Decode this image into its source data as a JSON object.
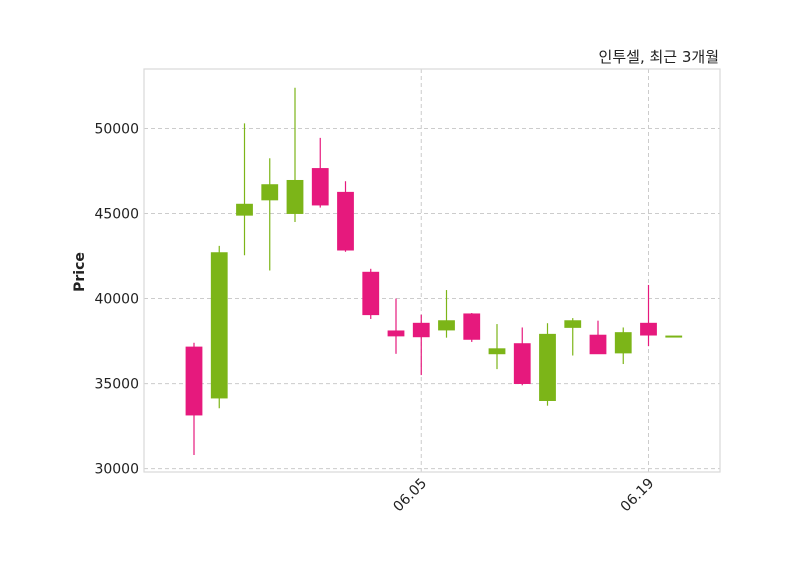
{
  "chart_data": {
    "type": "candlestick",
    "title": "인투셀, 최근 3개월",
    "ylabel": "Price",
    "ylim": [
      29800,
      53500
    ],
    "yticks": [
      30000,
      35000,
      40000,
      45000,
      50000
    ],
    "ytick_labels": [
      "30000",
      "35000",
      "40000",
      "45000",
      "50000"
    ],
    "xticks": [
      {
        "index": 9,
        "label": "06.05"
      },
      {
        "index": 18,
        "label": "06.19"
      }
    ],
    "grid": true,
    "colors": {
      "up": "#7cb518",
      "down": "#e6197d",
      "grid": "#cccccc",
      "frame": "#d9d9d9"
    },
    "candles": [
      {
        "open": 37150,
        "high": 37400,
        "low": 30800,
        "close": 33150
      },
      {
        "open": 34150,
        "high": 43100,
        "low": 33550,
        "close": 42700
      },
      {
        "open": 44900,
        "high": 50300,
        "low": 42550,
        "close": 45550
      },
      {
        "open": 45800,
        "high": 48250,
        "low": 41650,
        "close": 46700
      },
      {
        "open": 45000,
        "high": 52400,
        "low": 44500,
        "close": 46950
      },
      {
        "open": 47650,
        "high": 49450,
        "low": 45350,
        "close": 45500
      },
      {
        "open": 46250,
        "high": 46900,
        "low": 42750,
        "close": 42850
      },
      {
        "open": 41550,
        "high": 41750,
        "low": 38800,
        "close": 39050
      },
      {
        "open": 38100,
        "high": 40000,
        "low": 36750,
        "close": 37800
      },
      {
        "open": 38550,
        "high": 39050,
        "low": 35500,
        "close": 37750
      },
      {
        "open": 38150,
        "high": 40500,
        "low": 37700,
        "close": 38700
      },
      {
        "open": 39100,
        "high": 39150,
        "low": 37450,
        "close": 37600
      },
      {
        "open": 36750,
        "high": 38500,
        "low": 35850,
        "close": 37050
      },
      {
        "open": 37350,
        "high": 38300,
        "low": 34900,
        "close": 35000
      },
      {
        "open": 34000,
        "high": 38550,
        "low": 33700,
        "close": 37900
      },
      {
        "open": 38300,
        "high": 38850,
        "low": 36650,
        "close": 38700
      },
      {
        "open": 37850,
        "high": 38700,
        "low": 36750,
        "close": 36750
      },
      {
        "open": 36800,
        "high": 38300,
        "low": 36150,
        "close": 38000
      },
      {
        "open": 38550,
        "high": 40800,
        "low": 37200,
        "close": 37850
      },
      {
        "open": 37800,
        "high": 37800,
        "low": 37800,
        "close": 37800
      }
    ]
  }
}
